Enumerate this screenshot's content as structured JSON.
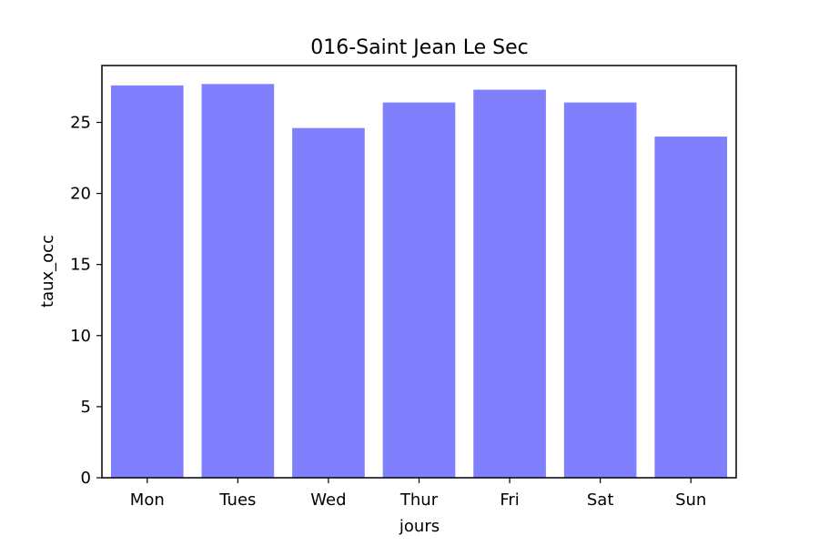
{
  "chart_data": {
    "type": "bar",
    "title": "016-Saint Jean Le Sec",
    "xlabel": "jours",
    "ylabel": "taux_occ",
    "categories": [
      "Mon",
      "Tues",
      "Wed",
      "Thur",
      "Fri",
      "Sat",
      "Sun"
    ],
    "values": [
      27.6,
      27.7,
      24.6,
      26.4,
      27.3,
      26.4,
      24.0
    ],
    "ylim": [
      0,
      29.0
    ],
    "yticks": [
      0,
      5,
      10,
      15,
      20,
      25
    ],
    "ytick_labels": [
      "0",
      "5",
      "10",
      "15",
      "20",
      "25"
    ],
    "bar_color": "#8080ff",
    "grid": false,
    "legend": "none"
  }
}
